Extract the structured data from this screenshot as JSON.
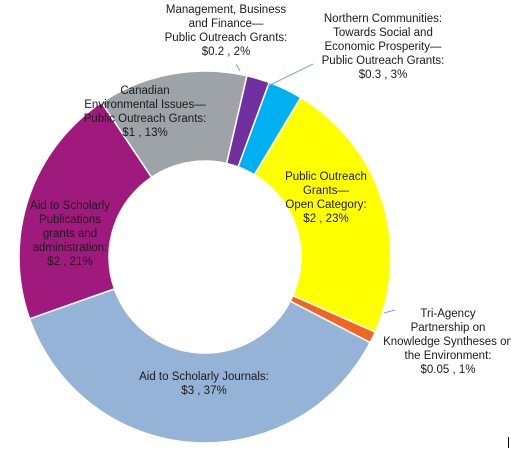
{
  "chart_data": {
    "type": "donut",
    "title": "",
    "unit": "$",
    "slices": [
      {
        "name": "Management, Business and Finance—Public Outreach Grants",
        "label_lines": [
          "Management, Business",
          "and Finance—",
          "Public Outreach Grants:",
          "$0.2 , 2%"
        ],
        "value": 0.2,
        "percent": 2,
        "color": "#7030a0"
      },
      {
        "name": "Northern Communities: Towards Social and Economic Prosperity—Public Outreach Grants",
        "label_lines": [
          "Northern Communities:",
          "Towards Social and",
          "Economic Prosperity—",
          "Public Outreach Grants:",
          "$0.3 , 3%"
        ],
        "value": 0.3,
        "percent": 3,
        "color": "#00b0f0"
      },
      {
        "name": "Public Outreach Grants—Open Category",
        "label_lines": [
          "Public Outreach",
          "Grants—",
          "Open Category:",
          "$2 , 23%"
        ],
        "value": 2,
        "percent": 23,
        "color": "#ffff00"
      },
      {
        "name": "Tri-Agency Partnership on Knowledge Syntheses on the Environment",
        "label_lines": [
          "Tri-Agency",
          "Partnership on",
          "Knowledge Syntheses on",
          "the Environment:",
          "$0.05 , 1%"
        ],
        "value": 0.05,
        "percent": 1,
        "color": "#f26522"
      },
      {
        "name": "Aid to Scholarly Journals",
        "label_lines": [
          "Aid to Scholarly Journals:",
          "$3 , 37%"
        ],
        "value": 3,
        "percent": 37,
        "color": "#95b3d7"
      },
      {
        "name": "Aid to Scholarly Publications grants and administration",
        "label_lines": [
          "Aid to Scholarly",
          "Publications",
          "grants and",
          "administration:",
          "$2 , 21%"
        ],
        "value": 2,
        "percent": 21,
        "color": "#a0197d"
      },
      {
        "name": "Canadian Environmental Issues—Public Outreach Grants",
        "label_lines": [
          "Canadian",
          "Environmental Issues—",
          "Public Outreach Grants:",
          "$1 , 13%"
        ],
        "value": 1,
        "percent": 13,
        "color": "#9ea3a8"
      }
    ]
  }
}
